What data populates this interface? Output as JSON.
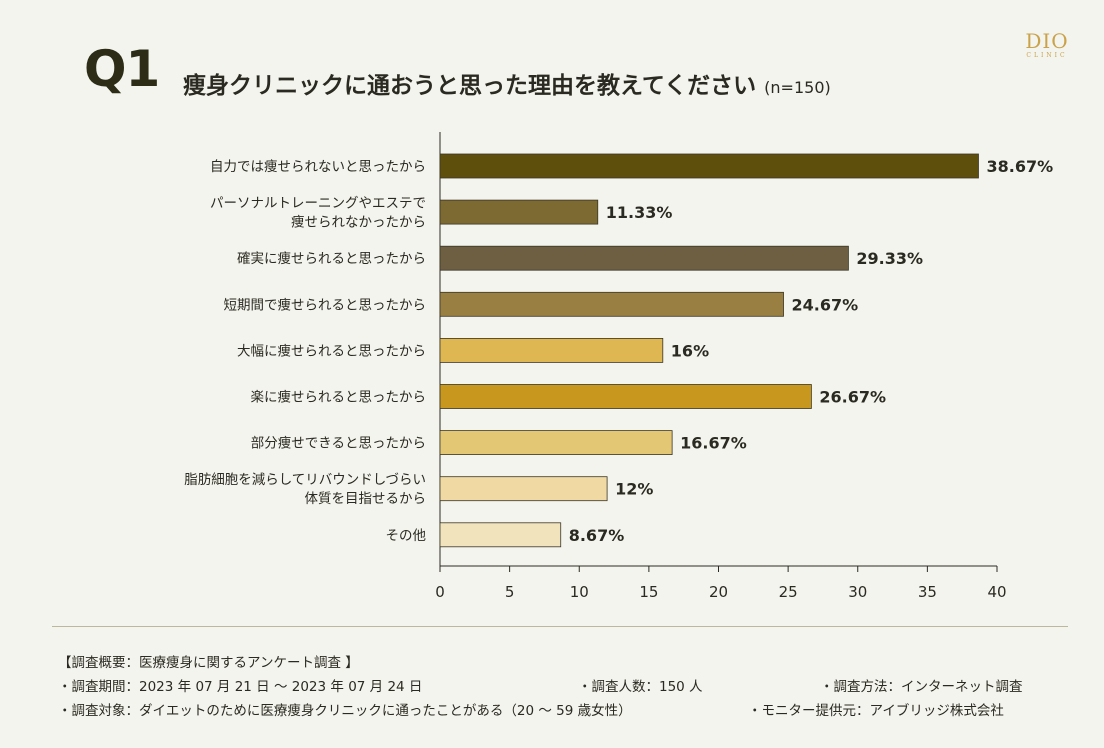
{
  "header": {
    "q_number": "Q1",
    "question": "痩身クリニックに通おうと思った理由を教えてください",
    "sample": "(n=150)",
    "logo_main": "DIO",
    "logo_sub": "CLINIC"
  },
  "chart_data": {
    "type": "bar",
    "orientation": "horizontal",
    "categories": [
      [
        "自力では痩せられないと思ったから"
      ],
      [
        "パーソナルトレーニングやエステで",
        "痩せられなかったから"
      ],
      [
        "確実に痩せられると思ったから"
      ],
      [
        "短期間で痩せられると思ったから"
      ],
      [
        "大幅に痩せられると思ったから"
      ],
      [
        "楽に痩せられると思ったから"
      ],
      [
        "部分痩せできると思ったから"
      ],
      [
        "脂肪細胞を減らしてリバウンドしづらい",
        "体質を目指せるから"
      ],
      [
        "その他"
      ]
    ],
    "values": [
      38.67,
      11.33,
      29.33,
      24.67,
      16,
      26.67,
      16.67,
      12,
      8.67
    ],
    "value_labels": [
      "38.67%",
      "11.33%",
      "29.33%",
      "24.67%",
      "16%",
      "26.67%",
      "16.67%",
      "12%",
      "8.67%"
    ],
    "colors": [
      "#5e4f0c",
      "#7c6a32",
      "#6e5f42",
      "#9a7f42",
      "#dfb752",
      "#c7981d",
      "#e3c774",
      "#f0d9a3",
      "#f1e3bc"
    ],
    "xlim": [
      0,
      40
    ],
    "xticks": [
      0,
      5,
      10,
      15,
      20,
      25,
      30,
      35,
      40
    ],
    "xtick_labels": [
      "0",
      "5",
      "10",
      "15",
      "20",
      "25",
      "30",
      "35",
      "40"
    ],
    "grid": false,
    "legend": "none"
  },
  "notes": {
    "heading": "【調査概要：医療痩身に関するアンケート調査 】",
    "period": "・調査期間：2023 年 07 月 21 日 ～ 2023 年 07 月 24 日",
    "count": "・調査人数：150 人",
    "method": "・調査方法：インターネット調査",
    "target": "・調査対象：ダイエットのために医療痩身クリニックに通ったことがある（20 ～ 59 歳女性）",
    "provider": "・モニター提供元：アイブリッジ株式会社"
  }
}
